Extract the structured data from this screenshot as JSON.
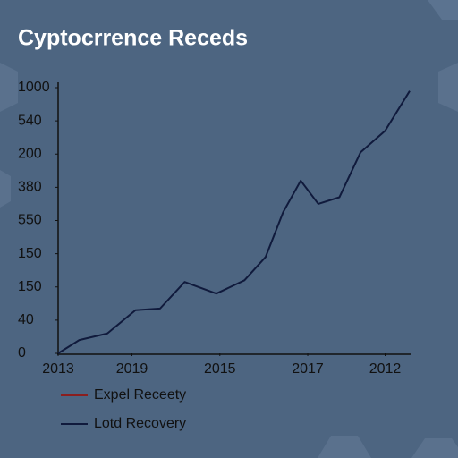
{
  "chart_data": {
    "type": "line",
    "title": "Cyptocrrence Receds",
    "x": [
      0,
      0.6,
      1.4,
      2.2,
      2.9,
      3.6,
      4.5,
      5.3,
      5.9,
      6.4,
      6.9,
      7.4,
      8.0,
      8.6,
      9.3,
      10.0
    ],
    "series": [
      {
        "name": "Lotd Recovery",
        "color": "#101a3c",
        "values": [
          0,
          0.4,
          0.6,
          1.3,
          1.35,
          2.15,
          1.8,
          2.2,
          2.9,
          4.25,
          5.2,
          4.5,
          4.7,
          6.05,
          6.7,
          7.9
        ]
      }
    ],
    "legend_extra": [
      {
        "name": "Expel Receety",
        "color": "#8b1e1e"
      }
    ],
    "xlim": [
      0,
      10
    ],
    "ylim": [
      0,
      8
    ],
    "xticks": [
      {
        "value": 0,
        "label": "2013"
      },
      {
        "value": 2.1,
        "label": "2019"
      },
      {
        "value": 4.6,
        "label": "2015"
      },
      {
        "value": 7.1,
        "label": "2017"
      },
      {
        "value": 9.3,
        "label": "2012"
      }
    ],
    "yticks": [
      {
        "value": 0,
        "label": "0"
      },
      {
        "value": 1,
        "label": "40"
      },
      {
        "value": 2,
        "label": "150"
      },
      {
        "value": 3,
        "label": "150"
      },
      {
        "value": 4,
        "label": "550"
      },
      {
        "value": 5,
        "label": "380"
      },
      {
        "value": 6,
        "label": "200"
      },
      {
        "value": 7,
        "label": "540"
      },
      {
        "value": 8,
        "label": "1000"
      }
    ]
  }
}
